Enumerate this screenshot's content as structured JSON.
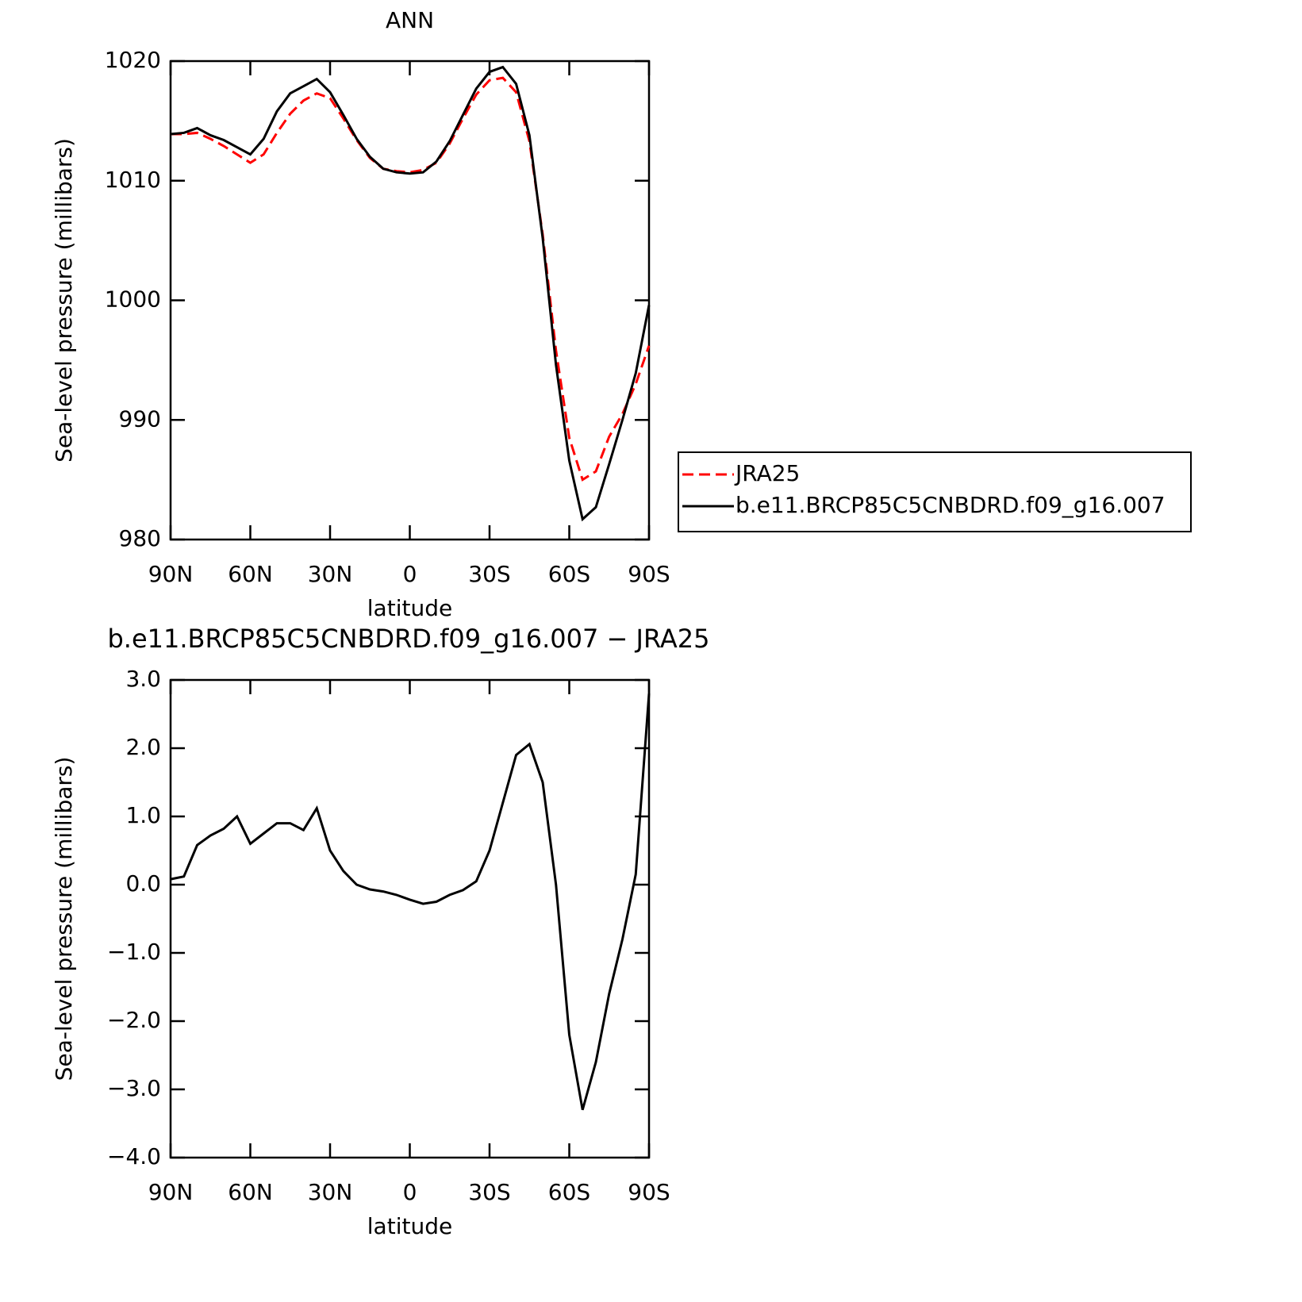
{
  "chart_data": [
    {
      "type": "line",
      "title": "ANN",
      "ylabel": "Sea-level pressure (millibars)",
      "xlabel": "latitude",
      "x": [
        90,
        85,
        80,
        75,
        70,
        65,
        60,
        55,
        50,
        45,
        40,
        35,
        30,
        25,
        20,
        15,
        10,
        5,
        0,
        -5,
        -10,
        -15,
        -20,
        -25,
        -30,
        -35,
        -40,
        -45,
        -50,
        -55,
        -60,
        -65,
        -70,
        -75,
        -80,
        -85,
        -90
      ],
      "series": [
        {
          "name": "JRA25",
          "color": "#ff0000",
          "style": "dashed",
          "values": [
            1013.9,
            1013.9,
            1014.0,
            1013.5,
            1012.9,
            1012.2,
            1011.5,
            1012.2,
            1014.0,
            1015.6,
            1016.7,
            1017.3,
            1016.9,
            1015.2,
            1013.4,
            1011.9,
            1011.0,
            1010.8,
            1010.7,
            1010.9,
            1011.5,
            1013.1,
            1015.2,
            1017.2,
            1018.4,
            1018.6,
            1017.4,
            1013.3,
            1005.5,
            995.8,
            988.5,
            985.0,
            985.7,
            988.6,
            990.5,
            993.0,
            996.2
          ]
        },
        {
          "name": "b.e11.BRCP85C5CNBDRD.f09_g16.007",
          "color": "#000000",
          "style": "solid",
          "values": [
            1013.9,
            1014.0,
            1014.4,
            1013.8,
            1013.4,
            1012.8,
            1012.2,
            1013.5,
            1015.8,
            1017.3,
            1017.9,
            1018.5,
            1017.4,
            1015.5,
            1013.5,
            1012.0,
            1011.0,
            1010.7,
            1010.6,
            1010.7,
            1011.6,
            1013.3,
            1015.5,
            1017.7,
            1019.1,
            1019.5,
            1018.1,
            1013.8,
            1005.2,
            994.6,
            986.6,
            981.7,
            982.7,
            986.3,
            990.0,
            993.9,
            999.6
          ]
        }
      ],
      "xlim": [
        90,
        -90
      ],
      "xticks": [
        {
          "value": 90,
          "label": "90N"
        },
        {
          "value": 60,
          "label": "60N"
        },
        {
          "value": 30,
          "label": "30N"
        },
        0,
        {
          "value": -30,
          "label": "30S"
        },
        {
          "value": -60,
          "label": "60S"
        },
        {
          "value": -90,
          "label": "90S"
        }
      ],
      "ylim": [
        980,
        1020
      ],
      "yticks": [
        980,
        990,
        1000,
        1010,
        1020
      ],
      "legend": "outside-right"
    },
    {
      "type": "line",
      "title": "b.e11.BRCP85C5CNBDRD.f09_g16.007 − JRA25",
      "ylabel": "Sea-level pressure (millibars)",
      "xlabel": "latitude",
      "x": [
        90,
        85,
        80,
        75,
        70,
        65,
        60,
        55,
        50,
        45,
        40,
        35,
        30,
        25,
        20,
        15,
        10,
        5,
        0,
        -5,
        -10,
        -15,
        -20,
        -25,
        -30,
        -35,
        -40,
        -45,
        -50,
        -55,
        -60,
        -65,
        -70,
        -75,
        -80,
        -85,
        -90
      ],
      "color": "#000000",
      "values": [
        0.08,
        0.12,
        0.58,
        0.72,
        0.82,
        1.0,
        0.6,
        0.75,
        0.9,
        0.9,
        0.8,
        1.12,
        0.5,
        0.2,
        0.0,
        -0.07,
        -0.1,
        -0.15,
        -0.22,
        -0.28,
        -0.25,
        -0.15,
        -0.08,
        0.05,
        0.5,
        1.2,
        1.9,
        2.06,
        1.5,
        0.0,
        -2.2,
        -3.3,
        -2.6,
        -1.6,
        -0.8,
        0.15,
        2.8
      ],
      "xlim": [
        90,
        -90
      ],
      "xticks": [
        {
          "value": 90,
          "label": "90N"
        },
        {
          "value": 60,
          "label": "60N"
        },
        {
          "value": 30,
          "label": "30N"
        },
        0,
        {
          "value": -30,
          "label": "30S"
        },
        {
          "value": -60,
          "label": "60S"
        },
        {
          "value": -90,
          "label": "90S"
        }
      ],
      "ylim": [
        -4,
        3
      ],
      "yticks": [
        {
          "value": -4,
          "label": "−4.0"
        },
        {
          "value": -3,
          "label": "−3.0"
        },
        {
          "value": -2,
          "label": "−2.0"
        },
        {
          "value": -1,
          "label": "−1.0"
        },
        {
          "value": 0,
          "label": "0.0"
        },
        {
          "value": 1,
          "label": "1.0"
        },
        {
          "value": 2,
          "label": "2.0"
        },
        {
          "value": 3,
          "label": "3.0"
        }
      ]
    }
  ]
}
